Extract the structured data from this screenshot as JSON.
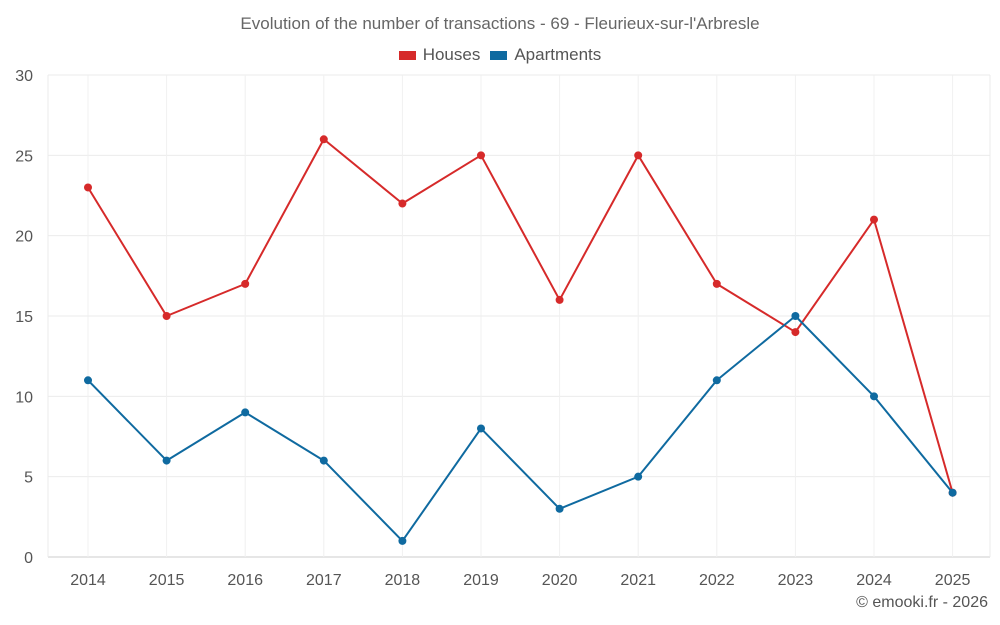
{
  "chart_data": {
    "type": "line",
    "title": "Evolution of the number of transactions - 69 - Fleurieux-sur-l'Arbresle",
    "xlabel": "",
    "ylabel": "",
    "categories": [
      "2014",
      "2015",
      "2016",
      "2017",
      "2018",
      "2019",
      "2020",
      "2021",
      "2022",
      "2023",
      "2024",
      "2025"
    ],
    "ylim": [
      0,
      30
    ],
    "yticks": [
      0,
      5,
      10,
      15,
      20,
      25,
      30
    ],
    "grid": true,
    "legend_position": "top-center",
    "series": [
      {
        "name": "Houses",
        "color": "#d62a2a",
        "values": [
          23,
          15,
          17,
          26,
          22,
          25,
          16,
          25,
          17,
          14,
          21,
          4
        ]
      },
      {
        "name": "Apartments",
        "color": "#0f6aa0",
        "values": [
          11,
          6,
          9,
          6,
          1,
          8,
          3,
          5,
          11,
          15,
          10,
          4
        ]
      }
    ]
  },
  "credit": "© emooki.fr - 2026"
}
